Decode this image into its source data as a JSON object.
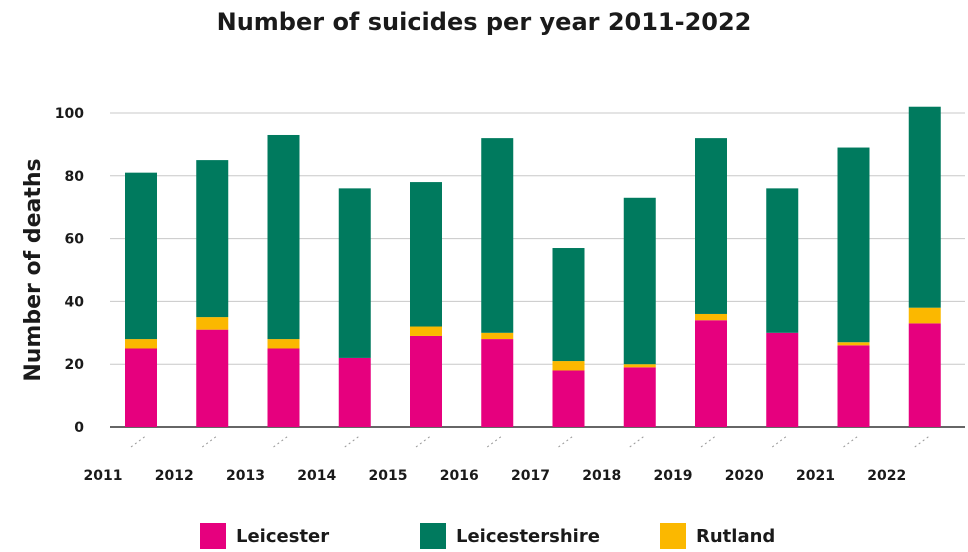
{
  "chart_data": {
    "type": "bar",
    "stacked": true,
    "title": "Number of suicides per year 2011-2022",
    "xlabel": "",
    "ylabel": "Number of deaths",
    "ylim": [
      0,
      100
    ],
    "yticks": [
      0,
      20,
      40,
      60,
      80,
      100
    ],
    "grid": true,
    "legend_position": "bottom",
    "categories": [
      "2011",
      "2012",
      "2013",
      "2014",
      "2015",
      "2016",
      "2017",
      "2018",
      "2019",
      "2020",
      "2021",
      "2022"
    ],
    "series": [
      {
        "name": "Leicester",
        "color": "#e6007e",
        "values": [
          25,
          31,
          25,
          22,
          29,
          28,
          18,
          19,
          34,
          30,
          26,
          33
        ]
      },
      {
        "name": "Rutland",
        "color": "#fbb800",
        "values": [
          3,
          4,
          3,
          0,
          3,
          2,
          3,
          1,
          2,
          0,
          1,
          5
        ]
      },
      {
        "name": "Leicestershire",
        "color": "#007a5e",
        "values": [
          53,
          50,
          65,
          54,
          46,
          62,
          36,
          53,
          56,
          46,
          62,
          64
        ]
      }
    ],
    "legend": [
      "Leicester",
      "Leicestershire",
      "Rutland"
    ]
  }
}
